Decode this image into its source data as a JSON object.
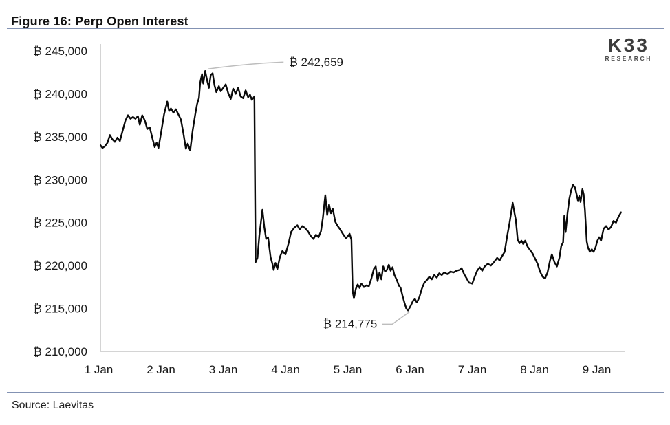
{
  "header": {
    "title": "Figure 16: Perp Open Interest"
  },
  "logo": {
    "brand": "K33",
    "sub": "RESEARCH"
  },
  "footer": {
    "source": "Source: Laevitas"
  },
  "colors": {
    "divider": "#8392b3"
  },
  "chart_data": {
    "type": "line",
    "title": "Figure 16: Perp Open Interest",
    "xlabel": "",
    "ylabel": "",
    "grid": false,
    "legend": "none",
    "ylim": [
      210000,
      245000
    ],
    "xlim": [
      1,
      9.46
    ],
    "y_axis": [
      {
        "value": 245000,
        "label": "₿ 245,000"
      },
      {
        "value": 240000,
        "label": "₿ 240,000"
      },
      {
        "value": 235000,
        "label": "₿ 235,000"
      },
      {
        "value": 230000,
        "label": "₿ 230,000"
      },
      {
        "value": 225000,
        "label": "₿ 225,000"
      },
      {
        "value": 220000,
        "label": "₿ 220,000"
      },
      {
        "value": 215000,
        "label": "₿ 215,000"
      },
      {
        "value": 210000,
        "label": "₿ 210,000"
      }
    ],
    "x_axis": [
      {
        "day": 1,
        "label": "1 Jan"
      },
      {
        "day": 2,
        "label": "2 Jan"
      },
      {
        "day": 3,
        "label": "3 Jan"
      },
      {
        "day": 4,
        "label": "4 Jan"
      },
      {
        "day": 5,
        "label": "5 Jan"
      },
      {
        "day": 6,
        "label": "6 Jan"
      },
      {
        "day": 7,
        "label": "7 Jan"
      },
      {
        "day": 8,
        "label": "8 Jan"
      },
      {
        "day": 9,
        "label": "9 Jan"
      }
    ],
    "annotations": [
      {
        "label": "₿ 242,659",
        "x": 2.71,
        "y": 242659,
        "side": "right"
      },
      {
        "label": "₿ 214,775",
        "x": 5.97,
        "y": 214775,
        "side": "left"
      }
    ],
    "colors": {
      "line": "#0a0a0a",
      "axis": "#c6c6c6",
      "leader": "#bdbdbd",
      "text": "#1a1a1a"
    },
    "series": [
      {
        "name": "Perp Open Interest",
        "x": [
          1.03,
          1.06,
          1.1,
          1.14,
          1.18,
          1.22,
          1.26,
          1.3,
          1.34,
          1.38,
          1.43,
          1.47,
          1.51,
          1.55,
          1.59,
          1.63,
          1.66,
          1.7,
          1.74,
          1.78,
          1.82,
          1.86,
          1.9,
          1.93,
          1.96,
          2.0,
          2.05,
          2.1,
          2.13,
          2.16,
          2.2,
          2.24,
          2.28,
          2.32,
          2.36,
          2.4,
          2.43,
          2.47,
          2.51,
          2.55,
          2.58,
          2.61,
          2.63,
          2.66,
          2.68,
          2.71,
          2.74,
          2.77,
          2.8,
          2.83,
          2.86,
          2.89,
          2.93,
          2.96,
          3.0,
          3.04,
          3.08,
          3.12,
          3.16,
          3.2,
          3.24,
          3.28,
          3.32,
          3.36,
          3.4,
          3.43,
          3.46,
          3.5,
          3.52,
          3.55,
          3.58,
          3.63,
          3.66,
          3.69,
          3.72,
          3.76,
          3.79,
          3.81,
          3.84,
          3.87,
          3.91,
          3.95,
          4.0,
          4.05,
          4.09,
          4.14,
          4.19,
          4.23,
          4.27,
          4.31,
          4.36,
          4.4,
          4.45,
          4.49,
          4.53,
          4.57,
          4.6,
          4.64,
          4.67,
          4.7,
          4.73,
          4.76,
          4.8,
          4.84,
          4.88,
          4.93,
          4.97,
          5.0,
          5.03,
          5.06,
          5.08,
          5.1,
          5.13,
          5.16,
          5.19,
          5.22,
          5.26,
          5.3,
          5.34,
          5.38,
          5.42,
          5.45,
          5.48,
          5.51,
          5.54,
          5.57,
          5.6,
          5.63,
          5.66,
          5.69,
          5.72,
          5.75,
          5.79,
          5.82,
          5.85,
          5.88,
          5.91,
          5.94,
          5.97,
          6.01,
          6.05,
          6.08,
          6.11,
          6.15,
          6.19,
          6.23,
          6.27,
          6.31,
          6.35,
          6.39,
          6.43,
          6.47,
          6.51,
          6.55,
          6.6,
          6.65,
          6.7,
          6.75,
          6.8,
          6.83,
          6.87,
          6.91,
          6.95,
          7.0,
          7.04,
          7.08,
          7.12,
          7.16,
          7.2,
          7.25,
          7.3,
          7.35,
          7.4,
          7.44,
          7.48,
          7.52,
          7.56,
          7.6,
          7.65,
          7.68,
          7.7,
          7.73,
          7.76,
          7.79,
          7.82,
          7.85,
          7.89,
          7.93,
          7.97,
          8.01,
          8.05,
          8.09,
          8.13,
          8.17,
          8.21,
          8.25,
          8.28,
          8.32,
          8.36,
          8.4,
          8.43,
          8.46,
          8.48,
          8.5,
          8.53,
          8.56,
          8.59,
          8.62,
          8.65,
          8.68,
          8.7,
          8.72,
          8.74,
          8.77,
          8.79,
          8.81,
          8.84,
          8.86,
          8.89,
          8.92,
          8.95,
          8.98,
          9.01,
          9.04,
          9.07,
          9.11,
          9.15,
          9.19,
          9.23,
          9.27,
          9.31,
          9.35,
          9.39
        ],
        "y": [
          234000,
          233700,
          233900,
          234300,
          235200,
          234700,
          234400,
          234900,
          234500,
          235600,
          236900,
          237500,
          237100,
          237300,
          237100,
          237400,
          236400,
          237500,
          236900,
          235900,
          236100,
          234900,
          233800,
          234300,
          233700,
          235400,
          237600,
          239100,
          238000,
          238300,
          237800,
          238200,
          237600,
          237000,
          235400,
          233600,
          234200,
          233400,
          235800,
          237600,
          238800,
          239500,
          241300,
          242300,
          241200,
          242659,
          241600,
          240700,
          242200,
          242400,
          241000,
          240200,
          240900,
          240300,
          240700,
          241100,
          240100,
          239400,
          240600,
          240000,
          240700,
          239700,
          239500,
          240400,
          239600,
          239900,
          239300,
          239700,
          220400,
          220900,
          223500,
          226500,
          224500,
          223100,
          223300,
          221000,
          220200,
          219500,
          220300,
          219600,
          221000,
          221700,
          221300,
          222600,
          223900,
          224400,
          224700,
          224200,
          224600,
          224400,
          224000,
          223500,
          223100,
          223600,
          223300,
          224000,
          225500,
          228200,
          225900,
          227100,
          226100,
          226600,
          225100,
          224600,
          224200,
          223600,
          223200,
          223400,
          223700,
          223000,
          217000,
          216200,
          217300,
          217800,
          217400,
          217900,
          217500,
          217700,
          217600,
          218500,
          219600,
          219900,
          218200,
          219200,
          218400,
          219900,
          219300,
          219500,
          220100,
          219400,
          219800,
          218900,
          218300,
          217700,
          217400,
          216500,
          215700,
          215000,
          214775,
          215300,
          215900,
          216100,
          215700,
          216300,
          217300,
          218000,
          218300,
          218700,
          218400,
          218900,
          218600,
          219100,
          218900,
          219200,
          219000,
          219300,
          219200,
          219400,
          219500,
          219700,
          219000,
          218500,
          218000,
          217900,
          218700,
          219400,
          219800,
          219400,
          219900,
          220200,
          220000,
          220400,
          220900,
          220600,
          221100,
          221600,
          223400,
          225000,
          227300,
          226100,
          225300,
          223000,
          222600,
          222900,
          222500,
          222900,
          222200,
          221800,
          221400,
          220800,
          220200,
          219300,
          218700,
          218500,
          219200,
          220600,
          221300,
          220400,
          219900,
          220900,
          222300,
          222700,
          225800,
          223900,
          226100,
          227800,
          228800,
          229400,
          229100,
          228200,
          227500,
          228100,
          227400,
          228900,
          228300,
          226500,
          222800,
          222100,
          221600,
          221900,
          221600,
          222100,
          222900,
          223300,
          222900,
          224300,
          224600,
          224200,
          224500,
          225200,
          225000,
          225700,
          226200
        ]
      }
    ]
  }
}
